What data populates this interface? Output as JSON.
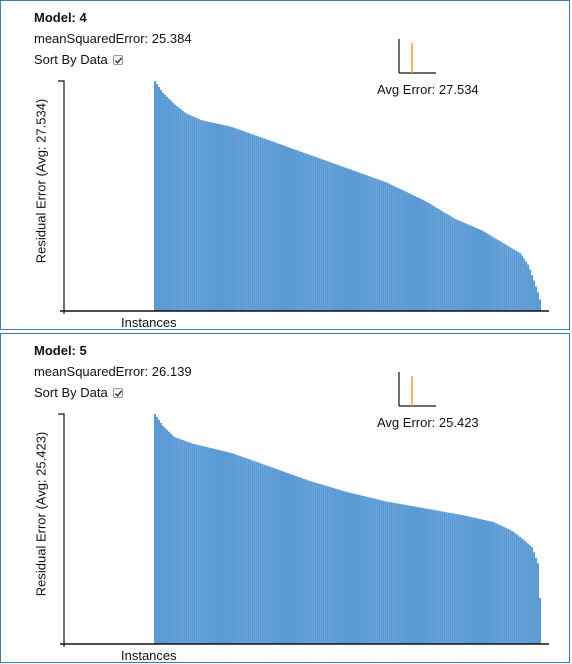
{
  "panels": [
    {
      "title": "Model: 4",
      "mse_text": "meanSquaredError: 25.384",
      "sort_label": "Sort By Data",
      "sort_checked": true,
      "avg_error_text": "Avg Error: 27.534",
      "ylabel": "Residual Error (Avg: 27.534)",
      "xlabel": "Instances"
    },
    {
      "title": "Model: 5",
      "mse_text": "meanSquaredError: 26.139",
      "sort_label": "Sort By Data",
      "sort_checked": true,
      "avg_error_text": "Avg Error: 25.423",
      "ylabel": "Residual Error (Avg: 25.423)",
      "xlabel": "Instances"
    }
  ],
  "colors": {
    "bar": "#5b9bd5",
    "accent": "#f0a020",
    "axis": "#111111",
    "border": "#3a7ab8"
  },
  "chart_data": [
    {
      "type": "bar",
      "sorted": "descending",
      "value_scale": "relative (0 = axis, 1 = tallest bar)",
      "x": [
        0,
        0.02,
        0.05,
        0.08,
        0.12,
        0.2,
        0.3,
        0.4,
        0.5,
        0.6,
        0.7,
        0.78,
        0.85,
        0.9,
        0.93,
        0.95,
        0.97,
        0.985,
        0.995,
        1.0
      ],
      "y": [
        1.0,
        0.95,
        0.9,
        0.86,
        0.83,
        0.8,
        0.74,
        0.68,
        0.62,
        0.56,
        0.48,
        0.4,
        0.35,
        0.3,
        0.27,
        0.25,
        0.2,
        0.13,
        0.08,
        0.05
      ]
    },
    {
      "type": "bar",
      "sorted": "descending",
      "value_scale": "relative (0 = axis, 1 = tallest bar)",
      "x": [
        0,
        0.02,
        0.05,
        0.1,
        0.2,
        0.3,
        0.4,
        0.5,
        0.6,
        0.7,
        0.8,
        0.88,
        0.93,
        0.96,
        0.98,
        0.995,
        1.0
      ],
      "y": [
        1.0,
        0.95,
        0.9,
        0.87,
        0.83,
        0.77,
        0.71,
        0.66,
        0.62,
        0.59,
        0.56,
        0.53,
        0.49,
        0.45,
        0.42,
        0.35,
        0.2
      ]
    }
  ]
}
